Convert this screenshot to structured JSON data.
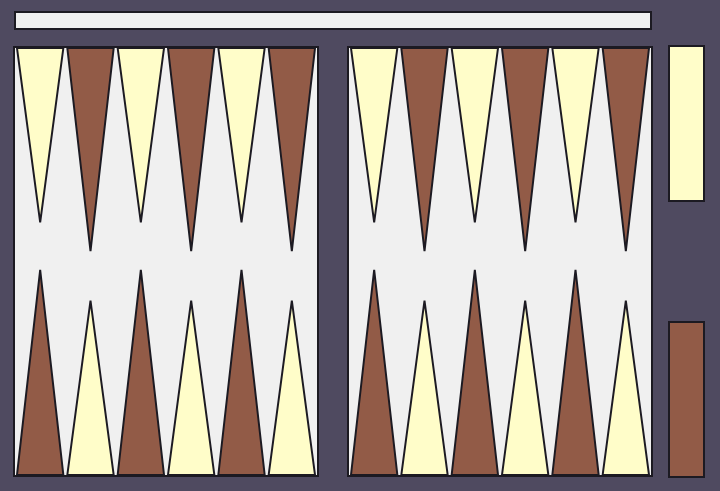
{
  "status": {
    "text": ""
  },
  "board": {
    "colors": {
      "background": "#4f4a60",
      "surface": "#f0f0f0",
      "outline": "#1c1a22",
      "light_point": "#fffdc9",
      "dark_point": "#925b47"
    },
    "points_per_quadrant": 6,
    "top_row_starts_with": "light",
    "bottom_row_starts_with": "dark"
  },
  "bear_off": {
    "top_color": "#fffdc9",
    "bottom_color": "#925b47"
  }
}
